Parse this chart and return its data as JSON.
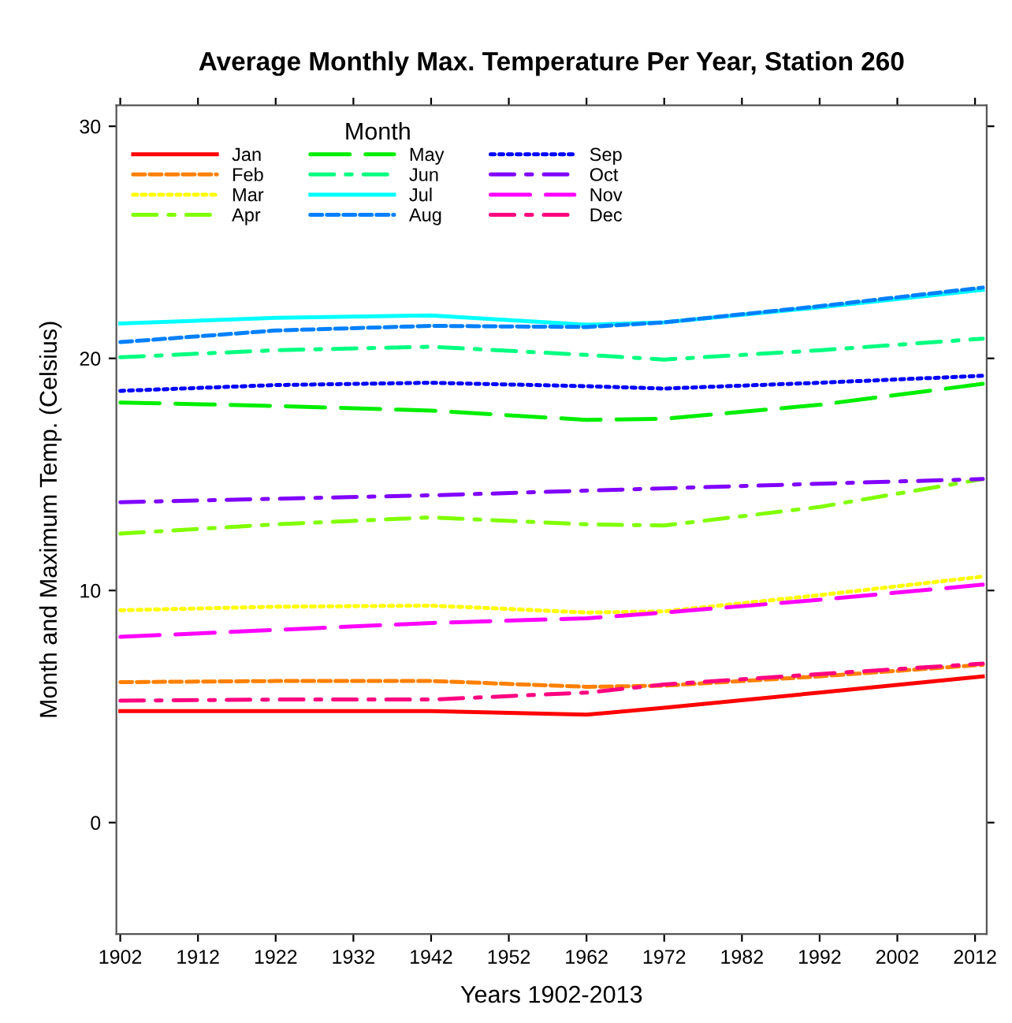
{
  "chart_data": {
    "type": "line",
    "title": "Average Monthly Max. Temperature Per Year, Station 260",
    "xlabel": "Years 1902-2013",
    "ylabel": "Month and Maximum Temp. (Celsius)",
    "legend_title": "Month",
    "x": [
      1902,
      1922,
      1942,
      1962,
      1972,
      1992,
      2013
    ],
    "series": [
      {
        "name": "Jan",
        "color": "#ff0000",
        "line_style": "solid",
        "values": [
          4.8,
          4.8,
          4.8,
          4.65,
          4.95,
          5.6,
          6.3
        ]
      },
      {
        "name": "Feb",
        "color": "#ff8000",
        "line_style": "dashed",
        "values": [
          6.05,
          6.1,
          6.1,
          5.85,
          5.9,
          6.3,
          6.8
        ]
      },
      {
        "name": "Mar",
        "color": "#ffff00",
        "line_style": "dotted",
        "values": [
          9.15,
          9.3,
          9.35,
          9.05,
          9.1,
          9.8,
          10.6
        ]
      },
      {
        "name": "Apr",
        "color": "#80ff00",
        "line_style": "dashdot",
        "values": [
          12.45,
          12.85,
          13.15,
          12.85,
          12.8,
          13.6,
          14.8
        ]
      },
      {
        "name": "May",
        "color": "#00ee00",
        "line_style": "longdash",
        "values": [
          18.1,
          17.95,
          17.75,
          17.35,
          17.4,
          18.0,
          18.9
        ]
      },
      {
        "name": "Jun",
        "color": "#00ff80",
        "line_style": "dashdot",
        "values": [
          20.05,
          20.35,
          20.5,
          20.15,
          19.95,
          20.35,
          20.85
        ]
      },
      {
        "name": "Jul",
        "color": "#00ffff",
        "line_style": "solid",
        "values": [
          21.5,
          21.75,
          21.85,
          21.45,
          21.55,
          22.2,
          22.95
        ]
      },
      {
        "name": "Aug",
        "color": "#0080ff",
        "line_style": "dashed",
        "values": [
          20.7,
          21.2,
          21.4,
          21.35,
          21.55,
          22.25,
          23.05
        ]
      },
      {
        "name": "Sep",
        "color": "#0000ff",
        "line_style": "dotted",
        "values": [
          18.6,
          18.85,
          18.95,
          18.8,
          18.7,
          18.95,
          19.25
        ]
      },
      {
        "name": "Oct",
        "color": "#8000ff",
        "line_style": "dashdot",
        "values": [
          13.8,
          13.95,
          14.1,
          14.3,
          14.4,
          14.6,
          14.8
        ]
      },
      {
        "name": "Nov",
        "color": "#ff00ff",
        "line_style": "longdash",
        "values": [
          8.0,
          8.3,
          8.6,
          8.8,
          9.05,
          9.6,
          10.25
        ]
      },
      {
        "name": "Dec",
        "color": "#ff0080",
        "line_style": "dashdot",
        "values": [
          5.25,
          5.3,
          5.3,
          5.6,
          5.95,
          6.4,
          6.85
        ]
      }
    ],
    "xlim": [
      1901.5,
      2013.5
    ],
    "xticks": [
      1902,
      1912,
      1922,
      1932,
      1942,
      1952,
      1962,
      1972,
      1982,
      1992,
      2002,
      2012
    ],
    "ylim": [
      -4.8,
      30.9
    ],
    "yticks": [
      0,
      10,
      20,
      30
    ],
    "grid": false,
    "legend": "top left",
    "marker": "none"
  }
}
